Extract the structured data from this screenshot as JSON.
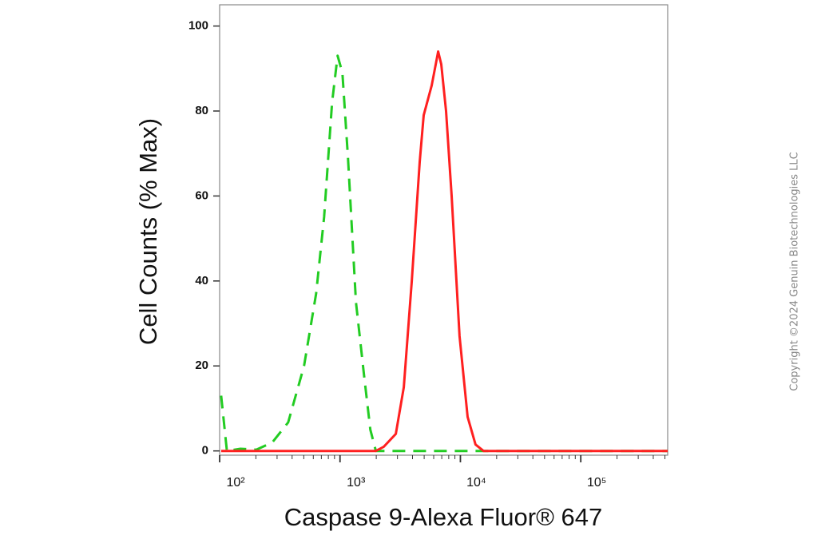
{
  "chart_data": {
    "type": "line",
    "x_label": "Caspase 9-Alexa Fluor® 647",
    "y_label": "Cell Counts (% Max)",
    "watermark": "Copyright ©2024 Genuin Biotechnologies LLC",
    "xscale": "log",
    "x": [
      103,
      115,
      149,
      202,
      274,
      371,
      503,
      633,
      738,
      859,
      955,
      1047,
      1164,
      1356,
      1580,
      1786,
      1986,
      2312,
      2909,
      3388,
      3945,
      4594,
      4954,
      5777,
      6237,
      6531,
      6934,
      7603,
      8455,
      9840,
      11480,
      13360,
      15560,
      30900,
      66200,
      527000
    ],
    "series": [
      {
        "color": "#22cc22",
        "line_style": "dashed",
        "values": [
          13,
          0,
          0.5,
          0.3,
          2,
          6.7,
          20,
          37,
          55,
          82,
          93,
          89,
          69,
          35,
          18,
          5,
          0,
          0,
          0,
          0,
          0,
          0,
          0,
          0,
          0,
          0,
          0,
          0,
          0,
          0,
          0,
          0,
          0,
          0,
          0,
          0
        ]
      },
      {
        "color": "#ff2020",
        "line_style": "solid",
        "values": [
          0,
          0,
          0,
          0,
          0,
          0,
          0,
          0,
          0,
          0,
          0,
          0,
          0,
          0,
          0,
          0,
          0,
          1,
          4,
          15,
          40,
          68,
          79,
          86,
          91,
          94,
          91,
          80,
          60,
          27,
          8,
          1.5,
          0,
          0,
          0,
          0
        ]
      }
    ],
    "xlim": [
      100,
      527000
    ],
    "xticks": [
      {
        "value": 100,
        "label": "10²"
      },
      {
        "value": 1000,
        "label": "10³"
      },
      {
        "value": 10000,
        "label": "10⁴"
      },
      {
        "value": 100000,
        "label": "10⁵"
      }
    ],
    "ylim": [
      -1,
      105
    ],
    "yticks": [
      0,
      20,
      40,
      60,
      80,
      100
    ]
  }
}
